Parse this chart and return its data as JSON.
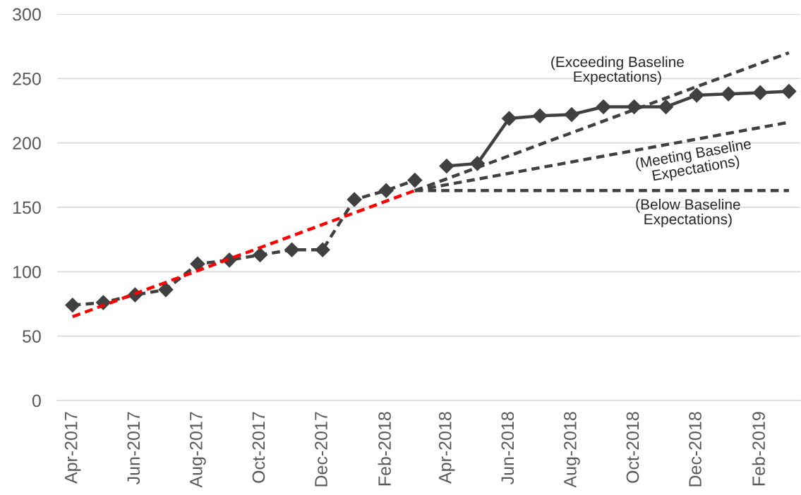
{
  "chart_data": {
    "type": "line",
    "series": [
      {
        "x": [
          "2017-04",
          "2017-05",
          "2017-06",
          "2017-07",
          "2017-08",
          "2017-09",
          "2017-10",
          "2017-11",
          "2017-12",
          "2018-01",
          "2018-02",
          "2018-03"
        ],
        "values": [
          74,
          76,
          82,
          86,
          106,
          109,
          113,
          117,
          117,
          156,
          163,
          171
        ],
        "color": "#404040",
        "line_style": "dashed",
        "marker": "diamond"
      },
      {
        "x": [
          "2018-04",
          "2018-05",
          "2018-06",
          "2018-07",
          "2018-08",
          "2018-09",
          "2018-10",
          "2018-11",
          "2018-12",
          "2019-01",
          "2019-02",
          "2019-03"
        ],
        "values": [
          182,
          184,
          219,
          221,
          222,
          228,
          228,
          228,
          237,
          238,
          239,
          240
        ],
        "color": "#404040",
        "line_style": "solid",
        "marker": "diamond"
      },
      {
        "x": [
          "2017-04",
          "2018-03"
        ],
        "values": [
          65,
          163
        ],
        "color": "#ff0000",
        "line_style": "dashed",
        "marker": "none"
      },
      {
        "x": [
          "2018-03",
          "2019-03"
        ],
        "values": [
          163,
          270
        ],
        "color": "#404040",
        "line_style": "dashed",
        "marker": "none"
      },
      {
        "x": [
          "2018-03",
          "2019-03"
        ],
        "values": [
          163,
          216
        ],
        "color": "#404040",
        "line_style": "dashed",
        "marker": "none"
      },
      {
        "x": [
          "2018-03",
          "2019-03"
        ],
        "values": [
          163,
          163
        ],
        "color": "#404040",
        "line_style": "dashed",
        "marker": "none"
      }
    ],
    "xlim": [
      "2017-03-17",
      "2019-03-12"
    ],
    "xticks": [
      {
        "value": "2017-04",
        "label": "Apr-2017"
      },
      {
        "value": "2017-06",
        "label": "Jun-2017"
      },
      {
        "value": "2017-08",
        "label": "Aug-2017"
      },
      {
        "value": "2017-10",
        "label": "Oct-2017"
      },
      {
        "value": "2017-12",
        "label": "Dec-2017"
      },
      {
        "value": "2018-02",
        "label": "Feb-2018"
      },
      {
        "value": "2018-04",
        "label": "Apr-2018"
      },
      {
        "value": "2018-06",
        "label": "Jun-2018"
      },
      {
        "value": "2018-08",
        "label": "Aug-2018"
      },
      {
        "value": "2018-10",
        "label": "Oct-2018"
      },
      {
        "value": "2018-12",
        "label": "Dec-2018"
      },
      {
        "value": "2019-02",
        "label": "Feb-2019"
      }
    ],
    "ylim": [
      0,
      300
    ],
    "yticks": [
      0,
      50,
      100,
      150,
      200,
      250,
      300
    ],
    "grid": "y",
    "annotations": [
      "(Exceeding Baseline\nExpectations)",
      "(Meeting Baseline\nExpectations)",
      "(Below Baseline\nExpectations)"
    ]
  }
}
